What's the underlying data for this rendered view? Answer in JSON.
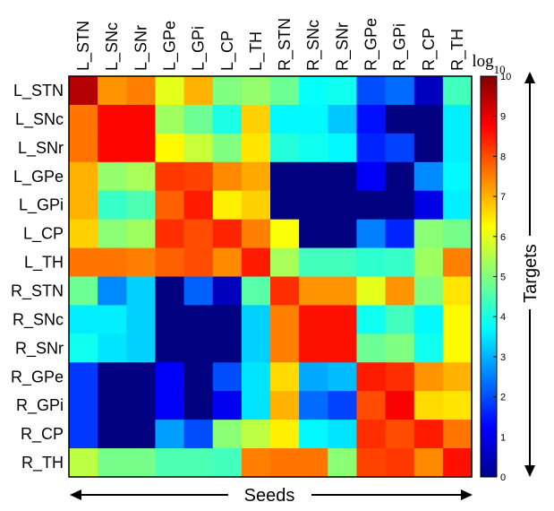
{
  "chart_data": {
    "type": "heatmap",
    "xlabel": "Seeds",
    "ylabel": "Targets",
    "x_categories": [
      "L_STN",
      "L_SNc",
      "L_SNr",
      "L_GPe",
      "L_GPi",
      "L_CP",
      "L_TH",
      "R_STN",
      "R_SNc",
      "R_SNr",
      "R_GPe",
      "R_GPi",
      "R_CP",
      "R_TH"
    ],
    "y_categories": [
      "L_STN",
      "L_SNc",
      "L_SNr",
      "L_GPe",
      "L_GPi",
      "L_CP",
      "L_TH",
      "R_STN",
      "R_SNc",
      "R_SNr",
      "R_GPe",
      "R_GPi",
      "R_CP",
      "R_TH"
    ],
    "values": [
      [
        9.5,
        7.3,
        7.5,
        6.0,
        7.0,
        5.0,
        5.2,
        4.8,
        3.8,
        3.9,
        2.0,
        2.3,
        0.6,
        4.4
      ],
      [
        7.6,
        8.7,
        8.7,
        5.3,
        4.8,
        4.0,
        6.7,
        3.7,
        3.7,
        3.2,
        1.4,
        0.0,
        0.0,
        3.6
      ],
      [
        7.6,
        8.7,
        8.7,
        6.3,
        5.7,
        5.0,
        6.5,
        4.1,
        3.9,
        3.7,
        1.6,
        1.9,
        0.0,
        3.6
      ],
      [
        7.0,
        5.2,
        5.4,
        8.2,
        8.1,
        7.4,
        7.1,
        0.0,
        0.0,
        0.0,
        1.2,
        0.0,
        2.6,
        3.7
      ],
      [
        7.0,
        4.3,
        4.5,
        7.8,
        8.5,
        6.4,
        6.7,
        0.0,
        0.0,
        0.0,
        0.0,
        0.0,
        1.0,
        3.6
      ],
      [
        6.7,
        5.1,
        5.3,
        8.3,
        8.0,
        8.4,
        7.5,
        6.2,
        0.0,
        0.0,
        2.5,
        1.6,
        5.1,
        4.9
      ],
      [
        7.6,
        7.6,
        7.5,
        7.8,
        8.0,
        7.4,
        8.5,
        5.4,
        4.4,
        4.4,
        4.2,
        4.3,
        5.3,
        7.5
      ],
      [
        4.8,
        2.6,
        3.3,
        0.0,
        2.2,
        0.6,
        4.6,
        8.3,
        7.3,
        7.3,
        6.0,
        7.3,
        5.0,
        6.5
      ],
      [
        3.6,
        3.6,
        3.3,
        0.0,
        0.0,
        0.0,
        3.3,
        7.5,
        8.6,
        8.6,
        3.9,
        4.4,
        3.7,
        6.3
      ],
      [
        3.9,
        3.5,
        3.3,
        0.0,
        0.0,
        0.0,
        3.3,
        7.5,
        8.6,
        8.6,
        4.8,
        5.0,
        3.9,
        6.3
      ],
      [
        1.8,
        0.0,
        0.0,
        1.2,
        0.0,
        2.0,
        3.5,
        6.6,
        2.9,
        3.1,
        8.5,
        8.3,
        7.3,
        7.0
      ],
      [
        1.8,
        0.0,
        0.0,
        1.2,
        0.0,
        1.1,
        3.5,
        7.0,
        2.3,
        1.9,
        8.0,
        8.8,
        6.6,
        6.5
      ],
      [
        1.8,
        0.0,
        0.0,
        2.8,
        2.0,
        5.1,
        5.6,
        6.4,
        3.7,
        3.5,
        8.3,
        8.0,
        8.5,
        7.6
      ],
      [
        5.6,
        4.9,
        4.9,
        4.5,
        4.5,
        4.4,
        7.5,
        7.6,
        7.6,
        5.1,
        8.1,
        8.2,
        7.4,
        8.6
      ]
    ],
    "colorbar": {
      "label": "log10",
      "range": [
        0,
        10
      ],
      "ticks": [
        0,
        1,
        2,
        3,
        4,
        5,
        6,
        7,
        8,
        9,
        10
      ],
      "colormap": "jet"
    }
  }
}
